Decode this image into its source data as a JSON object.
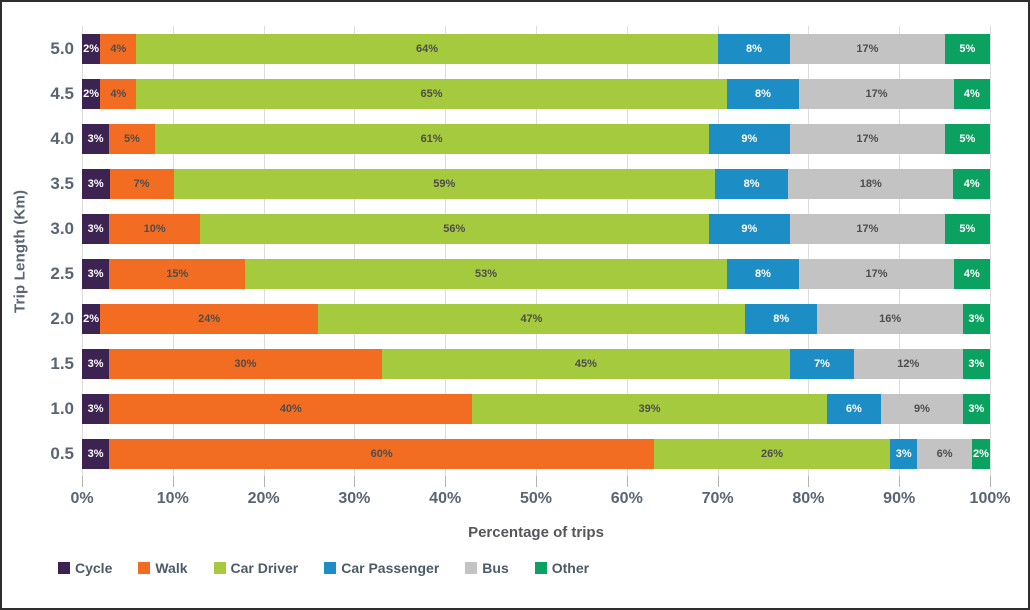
{
  "chart_data": {
    "type": "bar",
    "stacked": true,
    "orientation": "horizontal",
    "title": "",
    "xlabel": "Percentage of trips",
    "ylabel": "Trip Length (Km)",
    "xlim": [
      0,
      100
    ],
    "grid": "vertical",
    "legend_position": "bottom-left",
    "x_ticks": [
      "0%",
      "10%",
      "20%",
      "30%",
      "40%",
      "50%",
      "60%",
      "70%",
      "80%",
      "90%",
      "100%"
    ],
    "categories": [
      "5.0",
      "4.5",
      "4.0",
      "3.5",
      "3.0",
      "2.5",
      "2.0",
      "1.5",
      "1.0",
      "0.5"
    ],
    "series": [
      {
        "name": "Cycle",
        "color": "#3d2352",
        "label_color": "#ffffff",
        "values": [
          2,
          2,
          3,
          3,
          3,
          3,
          2,
          3,
          3,
          3
        ]
      },
      {
        "name": "Walk",
        "color": "#f26d21",
        "label_color": "#4d4d4d",
        "values": [
          4,
          4,
          5,
          7,
          10,
          15,
          24,
          30,
          40,
          60
        ]
      },
      {
        "name": "Car Driver",
        "color": "#a6ca3d",
        "label_color": "#4d4d4d",
        "values": [
          64,
          65,
          61,
          59,
          56,
          53,
          47,
          45,
          39,
          26
        ]
      },
      {
        "name": "Car Passenger",
        "color": "#1d8dc5",
        "label_color": "#ffffff",
        "values": [
          8,
          8,
          9,
          8,
          9,
          8,
          8,
          7,
          6,
          3
        ]
      },
      {
        "name": "Bus",
        "color": "#c3c3c3",
        "label_color": "#4d4d4d",
        "values": [
          17,
          17,
          17,
          18,
          17,
          17,
          16,
          12,
          9,
          6
        ]
      },
      {
        "name": "Other",
        "color": "#0aa161",
        "label_color": "#ffffff",
        "values": [
          5,
          4,
          5,
          4,
          5,
          4,
          3,
          3,
          3,
          2
        ]
      }
    ],
    "value_suffix": "%"
  },
  "colors": {
    "gridline": "#dcdcdc",
    "tick": "#b3b3b3",
    "axis_text": "#5a6472",
    "frame_border": "#2e2e2e"
  }
}
